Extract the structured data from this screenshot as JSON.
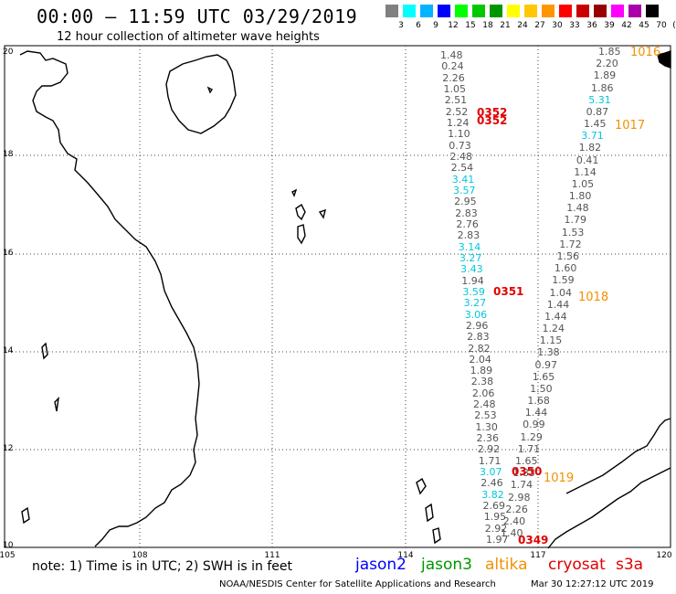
{
  "header": {
    "title": "00:00 – 11:59 UTC 03/29/2019",
    "subtitle": "12 hour collection of altimeter wave heights"
  },
  "colorbar": {
    "colors": [
      "#808080",
      "#00ffff",
      "#00b4ff",
      "#0000ff",
      "#00ff00",
      "#00c800",
      "#009600",
      "#ffff00",
      "#ffc800",
      "#ff9600",
      "#ff0000",
      "#c80000",
      "#960000",
      "#ff00ff",
      "#aa00aa",
      "#000000"
    ],
    "labels": [
      "3",
      "6",
      "9",
      "12",
      "15",
      "18",
      "21",
      "24",
      "27",
      "30",
      "33",
      "36",
      "39",
      "42",
      "45",
      "70",
      "(ft)"
    ]
  },
  "axes": {
    "lat_labels": [
      "20",
      "18",
      "16",
      "14",
      "12",
      "10"
    ],
    "lon_labels": [
      "105",
      "108",
      "111",
      "114",
      "117",
      "120"
    ]
  },
  "tracks": {
    "track_a": [
      "1.48",
      "0.24",
      "2.26",
      "1.05",
      "2.51",
      "2.52",
      "1.24",
      "1.10",
      "0.73",
      "2.48",
      "2.54",
      "3.41",
      "3.57",
      "2.95",
      "2.83",
      "2.76",
      "2.83",
      "3.14",
      "3.27",
      "3.43",
      "1.94",
      "3.59",
      "3.27",
      "3.06",
      "2.96",
      "2.83",
      "2.82",
      "2.04",
      "1.89",
      "2.38",
      "2.06",
      "2.48",
      "2.53",
      "1.30",
      "2.36",
      "2.92",
      "1.71",
      "3.07",
      "2.46",
      "3.82",
      "2.69",
      "1.95",
      "2.92",
      "1.97"
    ],
    "track_b": [
      "1.85",
      "2.20",
      "1.89",
      "1.86",
      "5.31",
      "0.87",
      "1.45",
      "3.71",
      "1.82",
      "0.41",
      "1.14",
      "1.05",
      "1.80",
      "1.48",
      "1.79",
      "1.53",
      "1.72",
      "1.56",
      "1.60",
      "1.59",
      "1.04",
      "1.44",
      "1.44",
      "1.24",
      "1.15",
      "1.38",
      "0.97",
      "1.65",
      "1.50",
      "1.68",
      "1.44",
      "0.99",
      "1.29",
      "1.71",
      "1.65",
      "1.83",
      "1.74",
      "2.98",
      "2.26",
      "2.40",
      "1.40"
    ],
    "highlight_threshold": 3
  },
  "pass_labels": [
    "0352",
    "0352",
    "0351",
    "0350",
    "0349"
  ],
  "orbit_labels": [
    "1016",
    "1017",
    "1018",
    "1019"
  ],
  "footer": {
    "note": "note: 1) Time is in UTC; 2) SWH is in feet",
    "legend": [
      {
        "name": "jason2",
        "color": "#0000ff"
      },
      {
        "name": "jason3",
        "color": "#009600"
      },
      {
        "name": "altika",
        "color": "#f39000"
      },
      {
        "name": "cryosat",
        "color": "#e00000"
      },
      {
        "name": "s3a",
        "color": "#e00000"
      }
    ],
    "credit": "NOAA/NESDIS Center for Satellite Applications and Research",
    "timestamp": "Mar 30 12:27:12 UTC 2019"
  }
}
